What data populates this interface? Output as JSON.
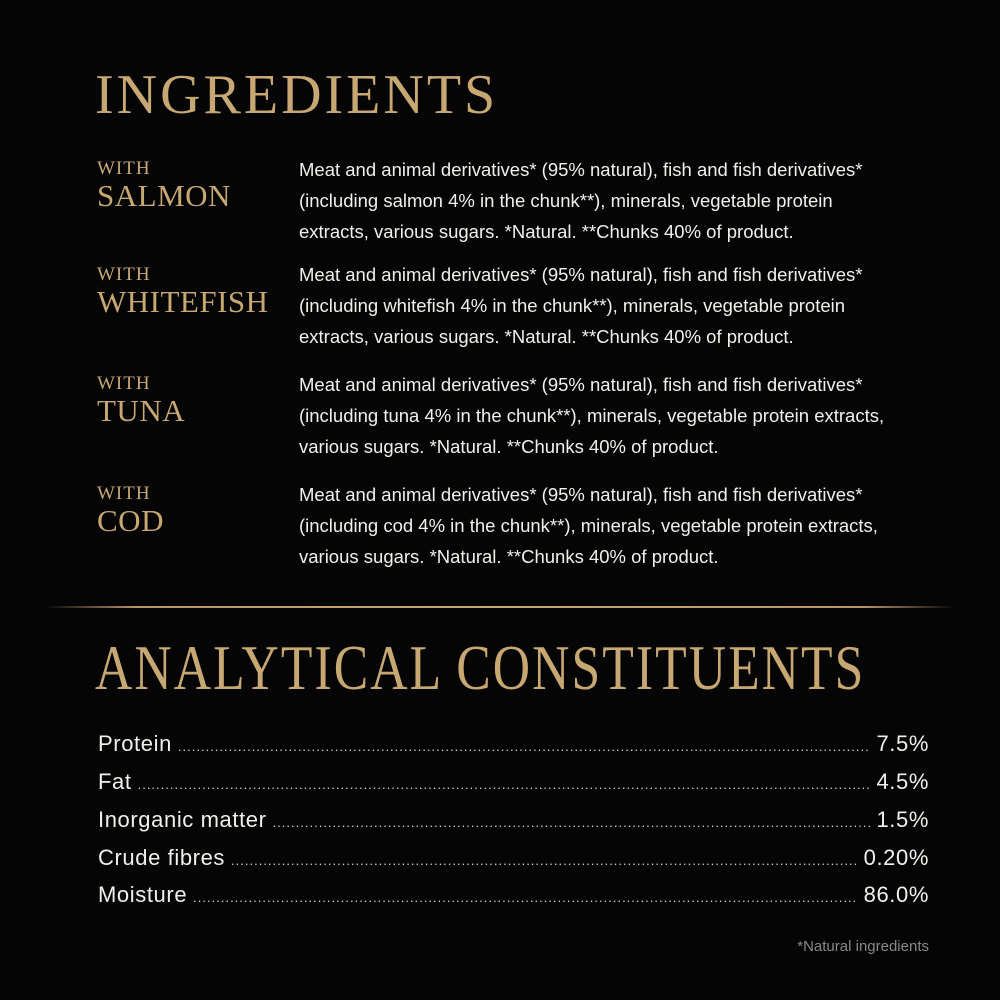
{
  "ingredients": {
    "title": "INGREDIENTS",
    "varieties": [
      {
        "with": "WITH",
        "name": "SALMON",
        "lines": [
          "Meat and animal derivatives* (95% natural), fish and fish derivatives*",
          "(including salmon 4% in the chunk**), minerals, vegetable protein",
          "extracts, various sugars. *Natural. **Chunks 40% of product."
        ]
      },
      {
        "with": "WITH",
        "name": "WHITEFISH",
        "lines": [
          "Meat and animal derivatives* (95% natural), fish and fish derivatives*",
          "(including whitefish 4% in the chunk**), minerals, vegetable protein",
          "extracts, various sugars. *Natural. **Chunks 40% of product."
        ]
      },
      {
        "with": "WITH",
        "name": "TUNA",
        "lines": [
          "Meat and animal derivatives* (95% natural), fish and fish derivatives*",
          "(including tuna 4% in the chunk**), minerals, vegetable protein extracts,",
          "various sugars. *Natural. **Chunks 40% of product."
        ]
      },
      {
        "with": "WITH",
        "name": "COD",
        "lines": [
          "Meat and animal derivatives* (95% natural), fish and fish derivatives*",
          "(including cod 4% in the chunk**), minerals, vegetable protein extracts,",
          "various sugars. *Natural. **Chunks 40% of product."
        ]
      }
    ]
  },
  "analytical": {
    "title": "ANALYTICAL CONSTITUENTS",
    "rows": [
      {
        "label": "Protein",
        "value": "7.5%"
      },
      {
        "label": "Fat",
        "value": "4.5%"
      },
      {
        "label": "Inorganic matter",
        "value": "1.5%"
      },
      {
        "label": "Crude fibres",
        "value": "0.20%"
      },
      {
        "label": "Moisture",
        "value": "86.0%"
      }
    ],
    "footnote": "*Natural ingredients"
  },
  "colors": {
    "background": "#050505",
    "gold": "#c8a872",
    "text": "#f2f0ec"
  }
}
